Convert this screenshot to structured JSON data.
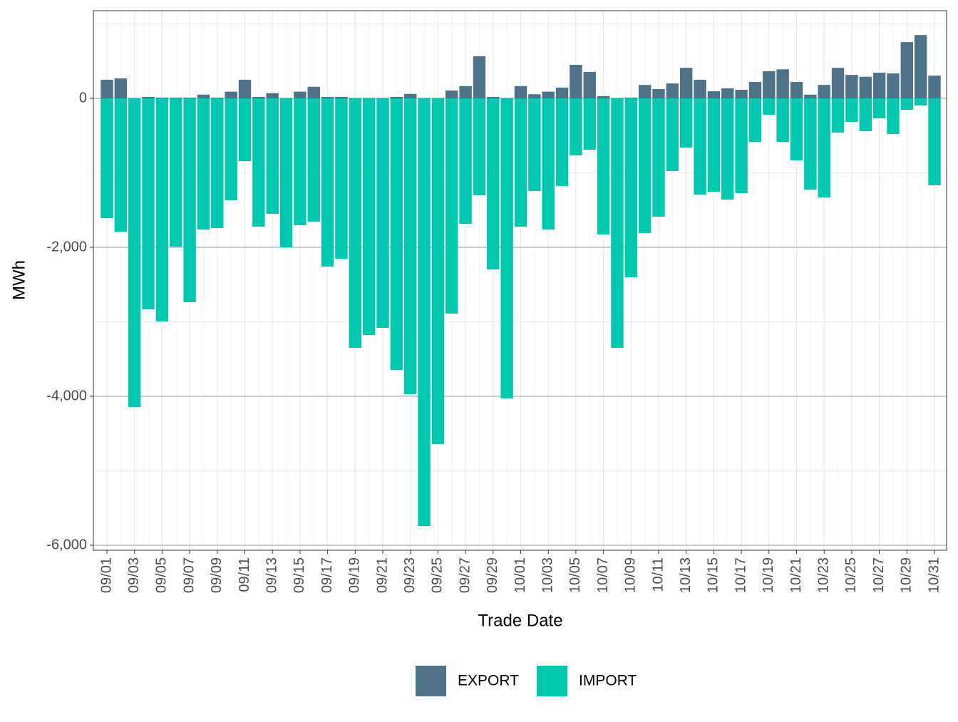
{
  "chart_data": {
    "type": "stacked_bar",
    "x_label": "Trade Date",
    "y_label": "MWh",
    "categories": [
      "09/01",
      null,
      "09/03",
      null,
      "09/05",
      null,
      "09/07",
      null,
      "09/09",
      null,
      "09/11",
      null,
      "09/13",
      null,
      "09/15",
      null,
      "09/17",
      null,
      "09/19",
      null,
      "09/21",
      null,
      "09/23",
      null,
      "09/25",
      null,
      "09/27",
      null,
      "09/29",
      null,
      "10/01",
      null,
      "10/03",
      null,
      "10/05",
      null,
      "10/07",
      null,
      "10/09",
      null,
      "10/11",
      null,
      "10/13",
      null,
      "10/15",
      null,
      "10/17",
      null,
      "10/19",
      null,
      "10/21",
      null,
      "10/23",
      null,
      "10/25",
      null,
      "10/27",
      null,
      "10/29",
      null,
      "10/31"
    ],
    "series": [
      {
        "name": "EXPORT",
        "color": "#4e7287",
        "values": [
          250,
          268,
          5,
          20,
          10,
          10,
          10,
          50,
          10,
          90,
          250,
          20,
          70,
          5,
          90,
          155,
          20,
          20,
          5,
          5,
          5,
          20,
          60,
          5,
          5,
          105,
          165,
          565,
          20,
          5,
          165,
          55,
          90,
          145,
          450,
          355,
          30,
          5,
          10,
          180,
          125,
          200,
          410,
          250,
          95,
          135,
          115,
          220,
          365,
          390,
          220,
          50,
          180,
          410,
          315,
          290,
          345,
          335,
          755,
          850,
          305
        ]
      },
      {
        "name": "IMPORT",
        "color": "#00c8b0",
        "values": [
          -1608,
          -1790,
          -4144,
          -2833,
          -2995,
          -1990,
          -2737,
          -1761,
          -1742,
          -1368,
          -842,
          -1722,
          -1550,
          -2000,
          -1703,
          -1656,
          -2258,
          -2153,
          -3349,
          -3177,
          -3081,
          -3646,
          -3971,
          -5742,
          -4641,
          -2890,
          -1684,
          -1301,
          -2297,
          -4029,
          -1722,
          -1244,
          -1761,
          -1177,
          -766,
          -689,
          -1828,
          -3349,
          -2402,
          -1809,
          -1589,
          -976,
          -660,
          -1292,
          -1254,
          -1359,
          -1273,
          -584,
          -220,
          -584,
          -833,
          -1225,
          -1330,
          -459,
          -316,
          -440,
          -268,
          -478,
          -153,
          -96,
          -1167
        ]
      }
    ],
    "ylim": [
      -6067,
      1177
    ],
    "yticks": [
      {
        "value": -6000,
        "label": "-6,000"
      },
      {
        "value": -4000,
        "label": "-4,000"
      },
      {
        "value": -2000,
        "label": "-2,000"
      },
      0
    ],
    "yminor": [
      -5000,
      -3000,
      -1000,
      1000
    ],
    "grid": true,
    "legend": "bottom"
  }
}
